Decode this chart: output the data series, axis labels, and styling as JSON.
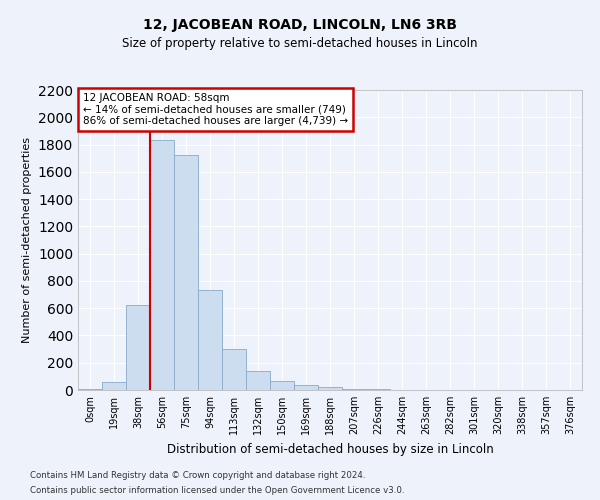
{
  "title": "12, JACOBEAN ROAD, LINCOLN, LN6 3RB",
  "subtitle": "Size of property relative to semi-detached houses in Lincoln",
  "xlabel": "Distribution of semi-detached houses by size in Lincoln",
  "ylabel": "Number of semi-detached properties",
  "annotation_line1": "12 JACOBEAN ROAD: 58sqm",
  "annotation_line2": "← 14% of semi-detached houses are smaller (749)",
  "annotation_line3": "86% of semi-detached houses are larger (4,739) →",
  "footer_line1": "Contains HM Land Registry data © Crown copyright and database right 2024.",
  "footer_line2": "Contains public sector information licensed under the Open Government Licence v3.0.",
  "bar_labels": [
    "0sqm",
    "19sqm",
    "38sqm",
    "56sqm",
    "75sqm",
    "94sqm",
    "113sqm",
    "132sqm",
    "150sqm",
    "169sqm",
    "188sqm",
    "207sqm",
    "226sqm",
    "244sqm",
    "263sqm",
    "282sqm",
    "301sqm",
    "320sqm",
    "338sqm",
    "357sqm",
    "376sqm"
  ],
  "bar_values": [
    10,
    60,
    620,
    1830,
    1720,
    730,
    300,
    140,
    65,
    35,
    20,
    10,
    5,
    2,
    2,
    0,
    0,
    0,
    0,
    0,
    0
  ],
  "bar_color": "#ccddf0",
  "bar_edge_color": "#88aacc",
  "red_line_x": 2.5,
  "red_line_color": "#cc0000",
  "ylim": [
    0,
    2200
  ],
  "yticks": [
    0,
    200,
    400,
    600,
    800,
    1000,
    1200,
    1400,
    1600,
    1800,
    2000,
    2200
  ],
  "bg_color": "#eef2fa",
  "grid_color": "#ffffff",
  "annotation_box_facecolor": "#ffffff",
  "annotation_box_edgecolor": "#cc0000"
}
